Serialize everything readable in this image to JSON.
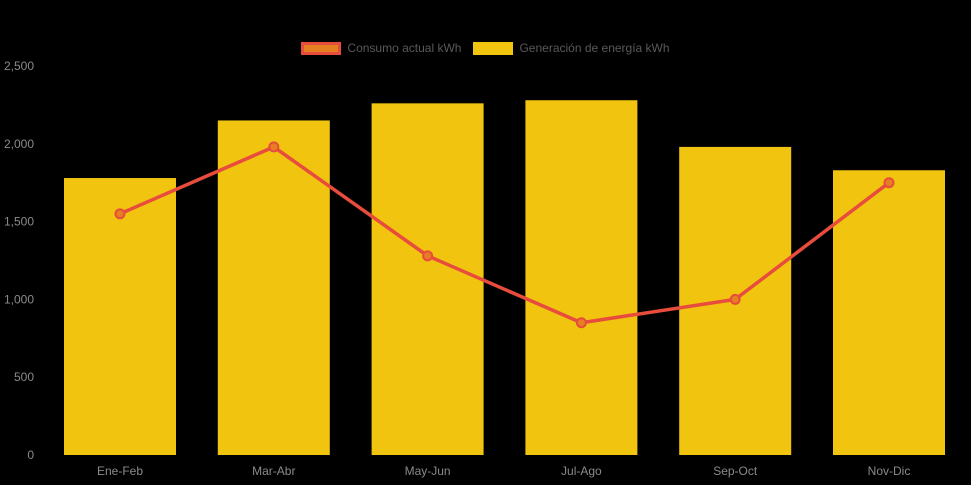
{
  "legend": {
    "items": [
      {
        "id": "consumo",
        "label": "Consumo actual kWh",
        "swatch_fill": "#E67E22",
        "swatch_border": "#E74C3C"
      },
      {
        "id": "generacion",
        "label": "Generación de energía kWh",
        "swatch_fill": "#F1C40F",
        "swatch_border": "#F1C40F"
      }
    ]
  },
  "colors": {
    "background": "#000000",
    "bar": "#F1C40F",
    "line": "#E74C3C",
    "point_fill": "#E67E22",
    "point_border": "#E74C3C",
    "axis_text": "#8A8A8A",
    "legend_text": "#595959"
  },
  "chart_data": {
    "type": "bar",
    "categories": [
      "Ene-Feb",
      "Mar-Abr",
      "May-Jun",
      "Jul-Ago",
      "Sep-Oct",
      "Nov-Dic"
    ],
    "series": [
      {
        "name": "Consumo actual kWh",
        "type": "line",
        "values": [
          1550,
          1980,
          1280,
          850,
          1000,
          1750
        ]
      },
      {
        "name": "Generación de energía kWh",
        "type": "bar",
        "values": [
          1780,
          2150,
          2260,
          2280,
          1980,
          1830
        ]
      }
    ],
    "title": "",
    "xlabel": "",
    "ylabel": "",
    "ylim": [
      0,
      2500
    ],
    "y_ticks": [
      0,
      500,
      1000,
      1500,
      2000,
      2500
    ],
    "y_tick_labels": [
      "0",
      "500",
      "1,000",
      "1,500",
      "2,000",
      "2,500"
    ],
    "grid": false,
    "legend_position": "top"
  }
}
